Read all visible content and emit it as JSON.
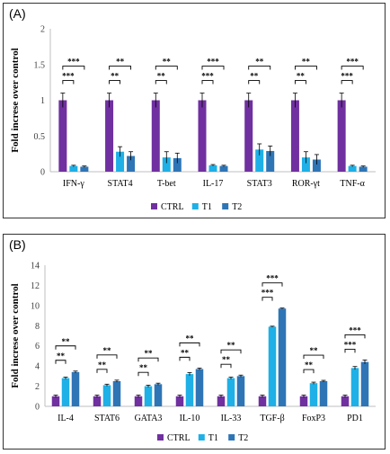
{
  "chart_data": [
    {
      "panel_label": "(A)",
      "type": "bar",
      "ylabel": "Fold increse over control",
      "ylim": [
        0,
        2
      ],
      "yticks": [
        "0",
        "0.5",
        "1",
        "1.5",
        "2"
      ],
      "categories": [
        "IFN-γ",
        "STAT4",
        "T-bet",
        "IL-17",
        "STAT3",
        "ROR-γt",
        "TNF-α"
      ],
      "series": [
        {
          "name": "CTRL",
          "color": "#7030a0",
          "values": [
            1,
            1,
            1,
            1,
            1,
            1,
            1
          ],
          "errors": [
            0.1,
            0.1,
            0.1,
            0.1,
            0.1,
            0.1,
            0.1
          ]
        },
        {
          "name": "T1",
          "color": "#1eb0e6",
          "values": [
            0.08,
            0.28,
            0.2,
            0.09,
            0.31,
            0.2,
            0.08
          ],
          "errors": [
            0.01,
            0.07,
            0.08,
            0.01,
            0.08,
            0.08,
            0.01
          ]
        },
        {
          "name": "T2",
          "color": "#2e75b6",
          "values": [
            0.07,
            0.22,
            0.19,
            0.08,
            0.29,
            0.17,
            0.07
          ],
          "errors": [
            0.01,
            0.06,
            0.07,
            0.01,
            0.07,
            0.07,
            0.01
          ]
        }
      ],
      "significance": [
        {
          "inner": "***",
          "outer": "***"
        },
        {
          "inner": "**",
          "outer": "**"
        },
        {
          "inner": "**",
          "outer": "**"
        },
        {
          "inner": "***",
          "outer": "***"
        },
        {
          "inner": "**",
          "outer": "**"
        },
        {
          "inner": "**",
          "outer": "**"
        },
        {
          "inner": "***",
          "outer": "***"
        }
      ],
      "legend": "bottom",
      "grid": false
    },
    {
      "panel_label": "(B)",
      "type": "bar",
      "ylabel": "Fold increse over control",
      "ylim": [
        0,
        14
      ],
      "yticks": [
        "0",
        "2",
        "4",
        "6",
        "8",
        "10",
        "12",
        "14"
      ],
      "categories": [
        "IL-4",
        "STAT6",
        "GATA3",
        "IL-10",
        "IL-33",
        "TGF-β",
        "FoxP3",
        "PD1"
      ],
      "series": [
        {
          "name": "CTRL",
          "color": "#7030a0",
          "values": [
            1,
            1,
            1,
            1,
            1,
            1,
            1,
            1
          ],
          "errors": [
            0.12,
            0.12,
            0.12,
            0.12,
            0.12,
            0.12,
            0.12,
            0.12
          ]
        },
        {
          "name": "T1",
          "color": "#1eb0e6",
          "values": [
            2.8,
            2.1,
            2.0,
            3.2,
            2.8,
            7.9,
            2.3,
            3.8
          ],
          "errors": [
            0.1,
            0.1,
            0.1,
            0.15,
            0.1,
            0.05,
            0.1,
            0.15
          ]
        },
        {
          "name": "T2",
          "color": "#2e75b6",
          "values": [
            3.4,
            2.5,
            2.2,
            3.7,
            3.0,
            9.7,
            2.5,
            4.4
          ],
          "errors": [
            0.1,
            0.1,
            0.1,
            0.1,
            0.1,
            0.05,
            0.08,
            0.2
          ]
        }
      ],
      "significance": [
        {
          "inner": "**",
          "outer": "**"
        },
        {
          "inner": "**",
          "outer": "**"
        },
        {
          "inner": "**",
          "outer": "**"
        },
        {
          "inner": "**",
          "outer": "**"
        },
        {
          "inner": "**",
          "outer": "**"
        },
        {
          "inner": "***",
          "outer": "***"
        },
        {
          "inner": "**",
          "outer": "**"
        },
        {
          "inner": "***",
          "outer": "***"
        }
      ],
      "legend": "bottom",
      "grid": false
    }
  ]
}
